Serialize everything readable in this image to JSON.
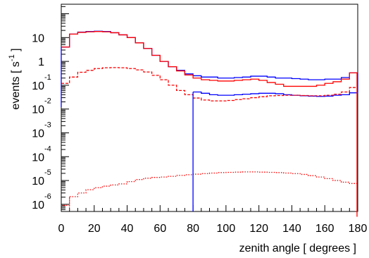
{
  "chart_data": {
    "type": "line",
    "xlabel": "zenith angle [ degrees ]",
    "ylabel_main": "events [ s",
    "ylabel_exp": "-1",
    "ylabel_end": " ]",
    "xlim": [
      0,
      180
    ],
    "ylim_log10": [
      -6.3,
      2.4
    ],
    "log_y": true,
    "grid": false,
    "x_ticks": [
      0,
      20,
      40,
      60,
      80,
      100,
      120,
      140,
      160,
      180
    ],
    "x_tick_labels": [
      "0",
      "20",
      "40",
      "60",
      "80",
      "100",
      "120",
      "140",
      "160",
      "180"
    ],
    "y_ticks": [
      {
        "value": 10,
        "base": "10",
        "exp": ""
      },
      {
        "value": 1,
        "base": "1",
        "exp": ""
      },
      {
        "value": 0.1,
        "base": "10",
        "exp": "-1"
      },
      {
        "value": 0.01,
        "base": "10",
        "exp": "-2"
      },
      {
        "value": 0.001,
        "base": "10",
        "exp": "-3"
      },
      {
        "value": 0.0001,
        "base": "10",
        "exp": "-4"
      },
      {
        "value": 1e-05,
        "base": "10",
        "exp": "-5"
      },
      {
        "value": 1e-06,
        "base": "10",
        "exp": "-6"
      }
    ],
    "bin_width": 5,
    "series": [
      {
        "color": "#0000ff",
        "dash": "solid",
        "x_start": 0,
        "values": [
          4,
          14,
          17,
          18,
          18.5,
          18,
          16,
          13,
          10,
          6,
          3.5,
          1.8,
          1.0,
          0.6,
          0.42,
          0.3,
          0.25,
          0.22,
          0.22,
          0.2,
          0.2,
          0.21,
          0.22,
          0.24,
          0.24,
          0.22,
          0.2,
          0.2,
          0.19,
          0.18,
          0.17,
          0.17,
          0.18,
          0.18,
          0.21,
          0.33
        ]
      },
      {
        "color": "#ff0000",
        "dash": "solid",
        "x_start": 0,
        "values": [
          4,
          14,
          16.5,
          17.5,
          18,
          17.5,
          16,
          13,
          10,
          6,
          3.5,
          1.8,
          1.0,
          0.6,
          0.4,
          0.27,
          0.2,
          0.17,
          0.16,
          0.15,
          0.15,
          0.16,
          0.17,
          0.18,
          0.16,
          0.13,
          0.11,
          0.09,
          0.09,
          0.09,
          0.09,
          0.1,
          0.12,
          0.14,
          0.18,
          0.33
        ]
      },
      {
        "color": "#0000ff",
        "dash": "solid",
        "x_start": 80,
        "values": [
          0.052,
          0.046,
          0.04,
          0.038,
          0.038,
          0.04,
          0.042,
          0.044,
          0.046,
          0.046,
          0.044,
          0.04,
          0.038,
          0.036,
          0.035,
          0.034,
          0.035,
          0.038,
          0.04,
          0.048
        ]
      },
      {
        "color": "#ff0000",
        "dash": "dashed",
        "x_start": 0,
        "values": [
          0.12,
          0.22,
          0.35,
          0.42,
          0.5,
          0.54,
          0.55,
          0.54,
          0.5,
          0.44,
          0.36,
          0.26,
          0.17,
          0.1,
          0.06,
          0.04,
          0.029,
          0.024,
          0.022,
          0.022,
          0.023,
          0.025,
          0.027,
          0.03,
          0.033,
          0.036,
          0.037,
          0.038,
          0.038,
          0.037,
          0.036,
          0.036,
          0.038,
          0.042,
          0.052,
          0.08
        ]
      },
      {
        "color": "#ff0000",
        "dash": "dotted",
        "x_start": 0,
        "values": [
          9e-07,
          2.1e-06,
          3e-06,
          4.1e-06,
          5e-06,
          5.8e-06,
          6.5e-06,
          7.2e-06,
          9e-06,
          1.1e-05,
          1.25e-05,
          1.35e-05,
          1.4e-05,
          1.5e-05,
          1.65e-05,
          1.75e-05,
          1.85e-05,
          1.95e-05,
          2.05e-05,
          2.15e-05,
          2.2e-05,
          2.25e-05,
          2.3e-05,
          2.3e-05,
          2.25e-05,
          2.2e-05,
          2.15e-05,
          2.05e-05,
          1.95e-05,
          1.8e-05,
          1.6e-05,
          1.4e-05,
          1.2e-05,
          1e-05,
          8.5e-06,
          7.5e-06
        ]
      }
    ],
    "right_edge": {
      "color": "#ff0000",
      "x": 180,
      "from": 3e-07,
      "to": 0.35
    }
  }
}
